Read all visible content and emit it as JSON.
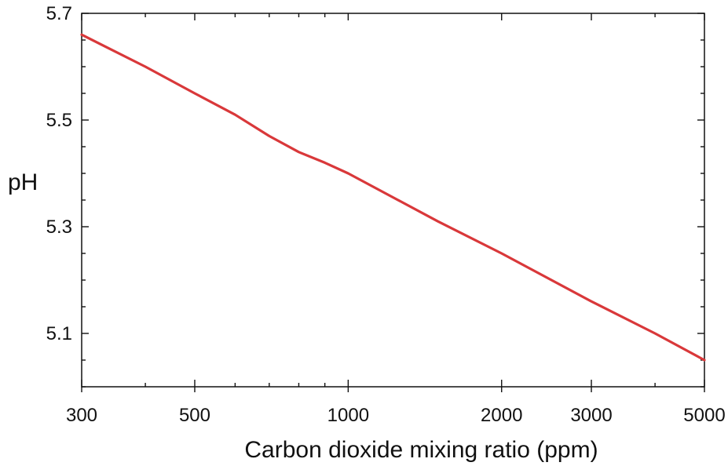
{
  "chart_data": {
    "type": "line",
    "title": "",
    "xlabel": "Carbon dioxide mixing ratio (ppm)",
    "ylabel": "pH",
    "x_scale": "log",
    "xlim": [
      300,
      5000
    ],
    "ylim": [
      5.0,
      5.7
    ],
    "x_ticks": [
      300,
      500,
      1000,
      2000,
      3000,
      5000
    ],
    "x_tick_labels": [
      "300",
      "500",
      "1000",
      "2000",
      "3000",
      "5000"
    ],
    "x_minor_ticks": [
      400,
      600,
      700,
      800,
      900,
      4000
    ],
    "y_ticks": [
      5.1,
      5.3,
      5.5,
      5.7
    ],
    "y_tick_labels": [
      "5.1",
      "5.3",
      "5.5",
      "5.7"
    ],
    "y_minor_ticks": [
      5.0,
      5.05,
      5.15,
      5.2,
      5.25,
      5.35,
      5.4,
      5.45,
      5.55,
      5.6,
      5.65
    ],
    "grid": false,
    "legend": "none",
    "series": [
      {
        "color": "#d9383a",
        "x": [
          300,
          400,
          500,
          600,
          700,
          800,
          900,
          1000,
          1500,
          2000,
          3000,
          4000,
          5000
        ],
        "y": [
          5.66,
          5.6,
          5.55,
          5.51,
          5.47,
          5.44,
          5.42,
          5.4,
          5.31,
          5.25,
          5.16,
          5.1,
          5.05
        ]
      }
    ]
  }
}
